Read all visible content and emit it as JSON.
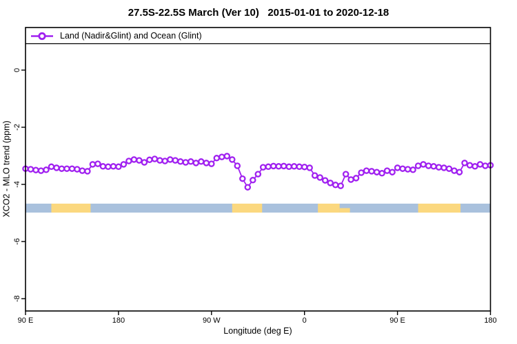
{
  "colors": {
    "series_purple": "#A020F0",
    "band_ocean_blue": "#A9C1DD",
    "band_land_yellow": "#FBD87F",
    "axis_black": "#000000"
  },
  "chart_data": {
    "type": "line",
    "title": "27.5S-22.5S March (Ver 10)   2015-01-01 to 2020-12-18",
    "xlabel": "Longitude (deg E)",
    "ylabel": "XCO2 - MLO trend (ppm)",
    "xlim": [
      90,
      540
    ],
    "ylim": [
      -8.43,
      1.49
    ],
    "grid": false,
    "legend_position": "top-left-strip",
    "x_ticks": [
      {
        "lon": 90,
        "label": "90 E"
      },
      {
        "lon": 180,
        "label": "180"
      },
      {
        "lon": 270,
        "label": "90 W"
      },
      {
        "lon": 360,
        "label": "0"
      },
      {
        "lon": 450,
        "label": "90 E"
      },
      {
        "lon": 540,
        "label": "180"
      }
    ],
    "y_ticks": [
      {
        "value": 0,
        "label": "0"
      },
      {
        "value": -2,
        "label": "-2"
      },
      {
        "value": -4,
        "label": "-4"
      },
      {
        "value": -6,
        "label": "-6"
      },
      {
        "value": -8,
        "label": "-8"
      }
    ],
    "series": [
      {
        "name": "Land (Nadir&Glint) and Ocean (Glint)",
        "marker": "open-circle",
        "color": "#A020F0",
        "x_start_deg_east": 90,
        "x_step_deg": 5,
        "values": [
          -3.45,
          -3.47,
          -3.5,
          -3.52,
          -3.49,
          -3.38,
          -3.42,
          -3.45,
          -3.45,
          -3.45,
          -3.47,
          -3.52,
          -3.54,
          -3.3,
          -3.28,
          -3.37,
          -3.38,
          -3.37,
          -3.38,
          -3.3,
          -3.18,
          -3.13,
          -3.16,
          -3.23,
          -3.14,
          -3.11,
          -3.16,
          -3.18,
          -3.13,
          -3.16,
          -3.2,
          -3.23,
          -3.2,
          -3.25,
          -3.2,
          -3.25,
          -3.28,
          -3.08,
          -3.04,
          -3.01,
          -3.13,
          -3.35,
          -3.8,
          -4.1,
          -3.85,
          -3.64,
          -3.4,
          -3.38,
          -3.36,
          -3.37,
          -3.36,
          -3.38,
          -3.37,
          -3.38,
          -3.39,
          -3.42,
          -3.69,
          -3.76,
          -3.86,
          -3.95,
          -4.02,
          -4.05,
          -3.64,
          -3.83,
          -3.78,
          -3.59,
          -3.52,
          -3.54,
          -3.57,
          -3.61,
          -3.52,
          -3.57,
          -3.42,
          -3.45,
          -3.47,
          -3.49,
          -3.35,
          -3.3,
          -3.35,
          -3.37,
          -3.4,
          -3.42,
          -3.45,
          -3.52,
          -3.57,
          -3.25,
          -3.33,
          -3.37,
          -3.3,
          -3.35,
          -3.33
        ]
      }
    ],
    "surface_band": {
      "y_center": -4.83,
      "thickness_px": 13,
      "ocean_color": "#A9C1DD",
      "land_color": "#FBD87F",
      "ocean_extent": {
        "from": 90,
        "to": 540
      },
      "land_segments": [
        {
          "surface": "land",
          "from": 115,
          "to": 153,
          "partial": false
        },
        {
          "surface": "land",
          "from": 290,
          "to": 319,
          "partial": false
        },
        {
          "surface": "land",
          "from": 373,
          "to": 394,
          "partial": false
        },
        {
          "surface": "land",
          "from": 394,
          "to": 404,
          "partial": true
        },
        {
          "surface": "land",
          "from": 470,
          "to": 511,
          "partial": false
        }
      ]
    }
  }
}
